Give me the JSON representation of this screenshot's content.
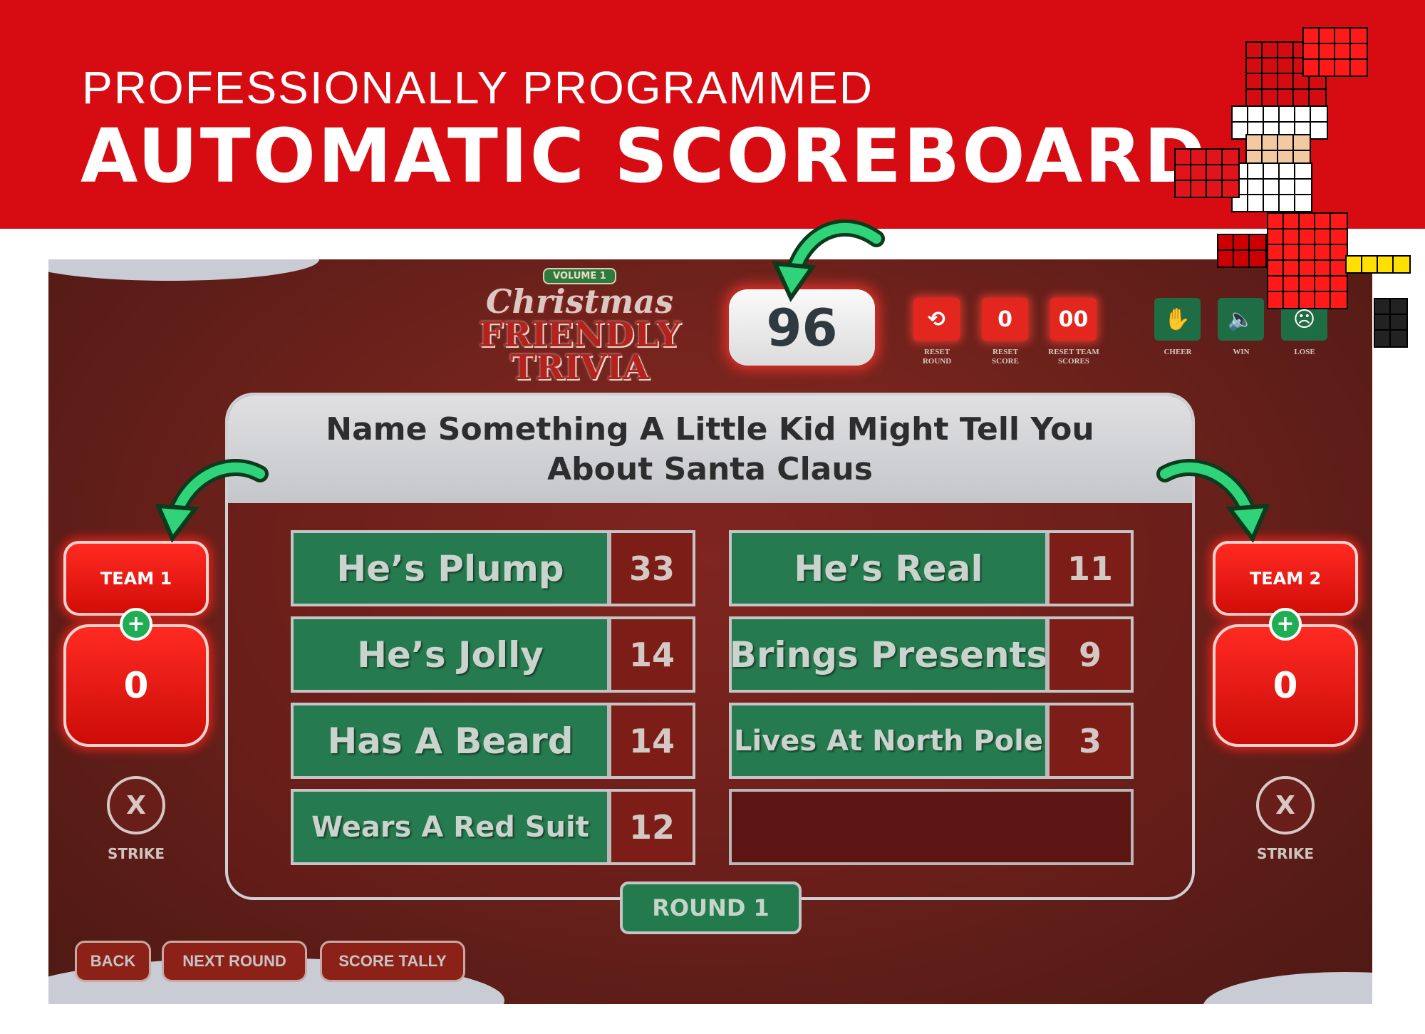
{
  "banner": {
    "subtitle": "PROFESSIONALLY PROGRAMMED",
    "title": "AUTOMATIC SCOREBOARD"
  },
  "logo": {
    "volume": "VOLUME 1",
    "line1": "Christmas",
    "line2": "FRIENDLY",
    "line3": "TRIVIA"
  },
  "timer": "96",
  "controls": [
    {
      "icon": "reset-round-icon",
      "label1": "RESET",
      "label2": "ROUND",
      "glyph": "⟲"
    },
    {
      "icon": "reset-score-icon",
      "label1": "RESET",
      "label2": "SCORE",
      "glyph": "0"
    },
    {
      "icon": "reset-team-scores-icon",
      "label1": "RESET TEAM",
      "label2": "SCORES",
      "glyph": "00"
    },
    {
      "icon": "cheer-icon",
      "label1": "CHEER",
      "label2": "",
      "glyph": "✋"
    },
    {
      "icon": "win-icon",
      "label1": "WIN",
      "label2": "",
      "glyph": "🔈"
    },
    {
      "icon": "lose-icon",
      "label1": "LOSE",
      "label2": "",
      "glyph": "☹"
    }
  ],
  "question": {
    "line1": "Name Something A Little Kid Might Tell You",
    "line2": "About Santa Claus"
  },
  "answers": {
    "left": [
      {
        "text": "He’s Plump",
        "points": "33"
      },
      {
        "text": "He’s Jolly",
        "points": "14"
      },
      {
        "text": "Has A Beard",
        "points": "14"
      },
      {
        "text": "Wears A Red Suit",
        "points": "12"
      }
    ],
    "right": [
      {
        "text": "He’s Real",
        "points": "11"
      },
      {
        "text": "Brings Presents",
        "points": "9"
      },
      {
        "text": "Lives At North Pole",
        "points": "3"
      }
    ]
  },
  "round": "ROUND 1",
  "teams": [
    {
      "name": "TEAM 1",
      "score": "0",
      "strike": "X",
      "strike_label": "STRIKE",
      "plus": "+"
    },
    {
      "name": "TEAM 2",
      "score": "0",
      "strike": "X",
      "strike_label": "STRIKE",
      "plus": "+"
    }
  ],
  "nav": {
    "back": "BACK",
    "next": "NEXT ROUND",
    "tally": "SCORE TALLY"
  },
  "colors": {
    "banner": "#d70c12",
    "answer_green": "#257a4f",
    "team_red": "#e3231b",
    "arrow": "#2fd47a"
  }
}
